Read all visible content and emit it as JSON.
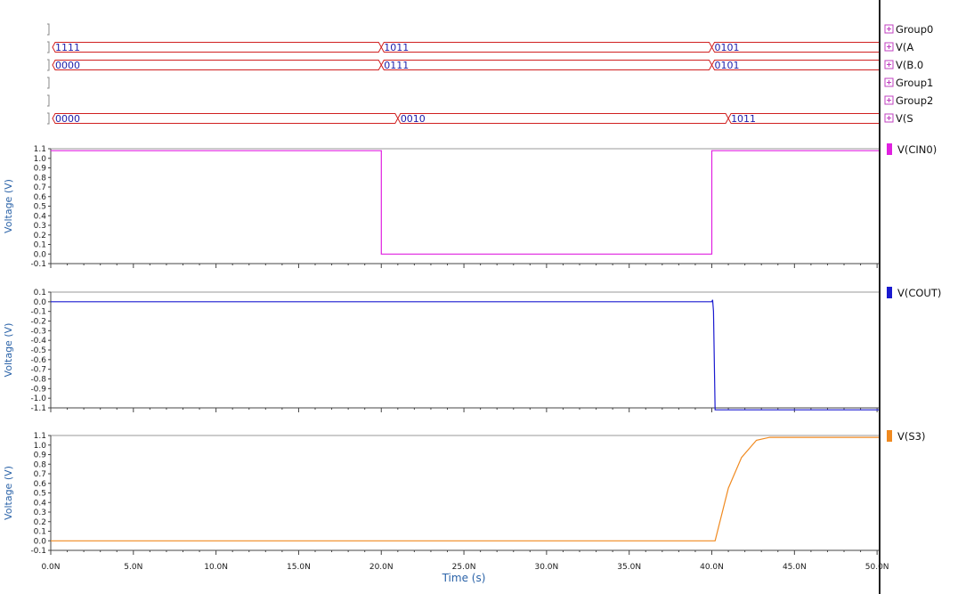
{
  "bus_groups": [
    {
      "name": "Group0",
      "segments": []
    },
    {
      "name": "V(A",
      "segments": [
        {
          "t0": 0,
          "t1": 20,
          "value": "1111"
        },
        {
          "t0": 20,
          "t1": 40,
          "value": "1011"
        },
        {
          "t0": 40,
          "t1": 50.1,
          "value": "0101"
        }
      ]
    },
    {
      "name": "V(B.0",
      "segments": [
        {
          "t0": 0,
          "t1": 20,
          "value": "0000"
        },
        {
          "t0": 20,
          "t1": 40,
          "value": "0111"
        },
        {
          "t0": 40,
          "t1": 50.1,
          "value": "0101"
        }
      ]
    },
    {
      "name": "Group1",
      "segments": []
    },
    {
      "name": "Group2",
      "segments": []
    },
    {
      "name": "V(S",
      "segments": [
        {
          "t0": 0,
          "t1": 21,
          "value": "0000"
        },
        {
          "t0": 21,
          "t1": 41,
          "value": "0010"
        },
        {
          "t0": 41,
          "t1": 50.1,
          "value": "1011"
        }
      ]
    }
  ],
  "chart_data": [
    {
      "type": "line",
      "ylabel": "Voltage (V)",
      "ylim": [
        -0.1,
        1.1
      ],
      "yticks": [
        "1.1",
        "1.0",
        "0.9",
        "0.8",
        "0.7",
        "0.6",
        "0.5",
        "0.4",
        "0.3",
        "0.2",
        "0.1",
        "0.0",
        "-0.1"
      ],
      "series": [
        {
          "name": "V(CIN0)",
          "color": "#e020e0",
          "x": [
            0,
            20,
            20,
            40,
            40,
            50.1
          ],
          "y": [
            1.08,
            1.08,
            0.0,
            0.0,
            1.08,
            1.08
          ]
        }
      ]
    },
    {
      "type": "line",
      "ylabel": "Voltage (V)",
      "ylim": [
        -1.1,
        0.1
      ],
      "yticks": [
        "0.1",
        "0.0",
        "-0.1",
        "-0.2",
        "-0.3",
        "-0.4",
        "-0.5",
        "-0.6",
        "-0.7",
        "-0.8",
        "-0.9",
        "-1.0",
        "-1.1"
      ],
      "series": [
        {
          "name": "V(COUT)",
          "color": "#1a1ad0",
          "x": [
            0,
            40,
            40.05,
            40.1,
            40.2,
            50.1
          ],
          "y": [
            0.0,
            0.0,
            0.02,
            -0.1,
            -1.12,
            -1.12
          ]
        }
      ]
    },
    {
      "type": "line",
      "ylabel": "Voltage (V)",
      "ylim": [
        -0.1,
        1.1
      ],
      "yticks": [
        "1.1",
        "1.0",
        "0.9",
        "0.8",
        "0.7",
        "0.6",
        "0.5",
        "0.4",
        "0.3",
        "0.2",
        "0.1",
        "0.0",
        "-0.1"
      ],
      "series": [
        {
          "name": "V(S3)",
          "color": "#f08a20",
          "x": [
            0,
            40.2,
            41,
            41.8,
            42.7,
            43.5,
            44.4,
            50.1
          ],
          "y": [
            0.0,
            0.0,
            0.55,
            0.87,
            1.05,
            1.08,
            1.08,
            1.08
          ]
        }
      ]
    }
  ],
  "x_axis": {
    "label": "Time (s)",
    "xlim": [
      0,
      50.1
    ],
    "ticks": [
      {
        "v": 0,
        "label": "0.0N"
      },
      {
        "v": 5,
        "label": "5.0N"
      },
      {
        "v": 10,
        "label": "10.0N"
      },
      {
        "v": 15,
        "label": "15.0N"
      },
      {
        "v": 20,
        "label": "20.0N"
      },
      {
        "v": 25,
        "label": "25.0N"
      },
      {
        "v": 30,
        "label": "30.0N"
      },
      {
        "v": 35,
        "label": "35.0N"
      },
      {
        "v": 40,
        "label": "40.0N"
      },
      {
        "v": 45,
        "label": "45.0N"
      },
      {
        "v": 50,
        "label": "50.0N"
      }
    ]
  },
  "colors": {
    "bus": "#d02020",
    "bus_text": "#1c1ca8",
    "axis_label": "#2b63a8",
    "expand_icon": "#c040c0"
  }
}
